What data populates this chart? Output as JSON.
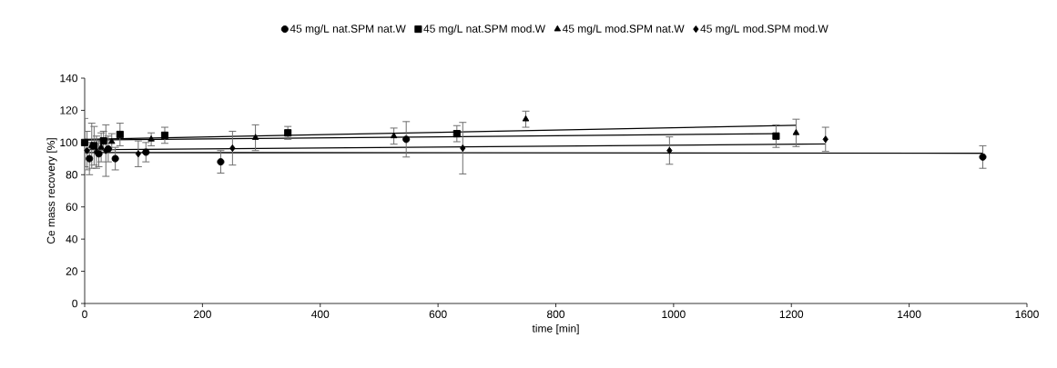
{
  "chart_data": {
    "type": "scatter",
    "xlabel": "time [min]",
    "ylabel": "Ce mass recovery [%]",
    "xlim": [
      0,
      1600
    ],
    "xticks": [
      0,
      200,
      400,
      600,
      800,
      1000,
      1200,
      1400,
      1600
    ],
    "ylim": [
      0,
      140
    ],
    "yticks": [
      0,
      20,
      40,
      60,
      80,
      100,
      120,
      140
    ],
    "legend": "top",
    "grid": false,
    "series": [
      {
        "name": "45 mg/L nat.SPM nat.W",
        "color": "#000000",
        "marker": "circle",
        "x": [
          8,
          24,
          40,
          52,
          104,
          231,
          546,
          1525
        ],
        "values": [
          90,
          93,
          96,
          90,
          94,
          88,
          102,
          91
        ],
        "errors": [
          10,
          8,
          8,
          7,
          6,
          7,
          11,
          7
        ]
      },
      {
        "name": "45 mg/L nat.SPM mod.W",
        "color": "#000000",
        "marker": "square",
        "x": [
          0,
          16,
          32,
          60,
          136,
          345,
          632,
          1174
        ],
        "values": [
          100,
          98,
          101,
          105,
          104.5,
          106,
          105.5,
          104
        ],
        "errors": [
          15,
          12,
          6,
          7,
          5,
          4,
          5,
          7
        ]
      },
      {
        "name": "45 mg/L mod.SPM nat.W",
        "color": "#000000",
        "marker": "triangle",
        "x": [
          12,
          28,
          46,
          113,
          290,
          525,
          749,
          1208
        ],
        "values": [
          98,
          97,
          100.5,
          102,
          103,
          104,
          114.5,
          106
        ],
        "errors": [
          14,
          9,
          5,
          4,
          8,
          5,
          5,
          8.5
        ]
      },
      {
        "name": "45 mg/L mod.SPM mod.W",
        "color": "#000000",
        "marker": "diamond",
        "x": [
          4,
          20,
          36,
          91,
          251,
          642,
          993,
          1258
        ],
        "values": [
          95,
          94,
          95,
          93,
          96.5,
          96.5,
          95,
          102
        ],
        "errors": [
          12,
          10,
          16,
          8,
          10.5,
          16,
          8.5,
          7.5
        ]
      },
      {
        "type": "line",
        "color": "#000000",
        "marker": "none",
        "x": [
          0,
          1525
        ],
        "values": [
          93.8,
          93.3
        ]
      },
      {
        "type": "line",
        "color": "#000000",
        "marker": "none",
        "x": [
          0,
          1174
        ],
        "values": [
          101.5,
          105.5
        ]
      },
      {
        "type": "line",
        "color": "#000000",
        "marker": "none",
        "x": [
          0,
          1208
        ],
        "values": [
          102,
          110.7
        ]
      },
      {
        "type": "line",
        "color": "#000000",
        "marker": "none",
        "x": [
          0,
          1258
        ],
        "values": [
          95.5,
          99.1
        ]
      }
    ]
  }
}
